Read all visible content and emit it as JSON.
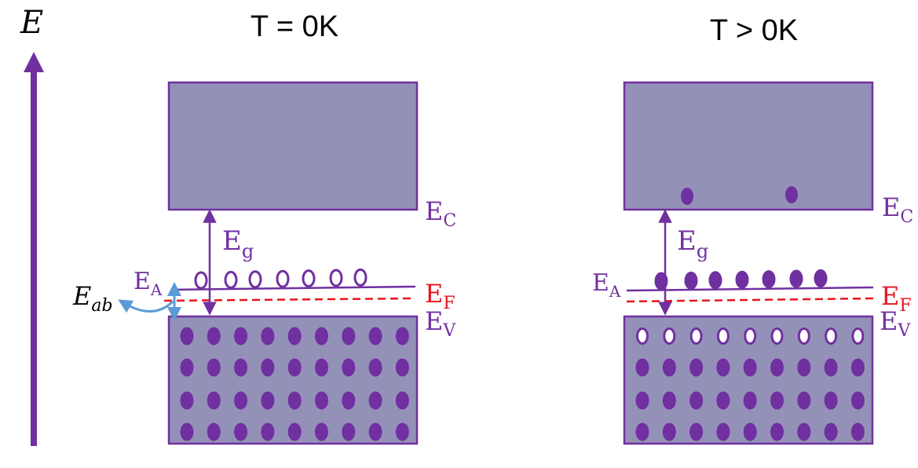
{
  "axis": {
    "label": "E",
    "color": "#7030a0"
  },
  "colors": {
    "band_fill": "#9491b8",
    "band_stroke": "#7030a0",
    "level": "#7030a0",
    "fermi": "#e8141e",
    "electron": "#7030a0",
    "hole_fill": "#ffffff",
    "ionization_arrow": "#5b9bd5"
  },
  "labels": {
    "ec_main": "E",
    "ec_sub": "C",
    "ev_main": "E",
    "ev_sub": "V",
    "ef_main": "E",
    "ef_sub": "F",
    "ea_main": "E",
    "ea_sub": "A",
    "eg_main": "E",
    "eg_sub": "g",
    "eab_main": "E",
    "eab_sub": "ab"
  },
  "panels": [
    {
      "id": "t0",
      "title": "T = 0K",
      "acceptor_states": "holes (empty)",
      "conduction_electrons": 0,
      "valence_top_row": "electrons",
      "valence_rows": 4,
      "valence_cols": 9,
      "acceptor_count": 7,
      "shows_ionization_energy": true
    },
    {
      "id": "t_gt0",
      "title": "T > 0K",
      "acceptor_states": "electrons (filled)",
      "conduction_electrons": 2,
      "valence_top_row": "holes",
      "valence_rows": 4,
      "valence_cols": 9,
      "acceptor_count": 7,
      "shows_ionization_energy": false
    }
  ]
}
